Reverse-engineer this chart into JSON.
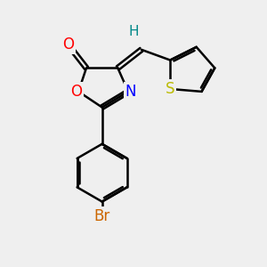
{
  "background_color": "#efefef",
  "bond_color": "#000000",
  "bond_width": 1.8,
  "atom_colors": {
    "O": "#ff0000",
    "N": "#0000ff",
    "S": "#bbbb00",
    "Br": "#cc6600",
    "H": "#008888",
    "C": "#000000"
  },
  "font_size": 10,
  "fig_size": [
    3.0,
    3.0
  ],
  "dpi": 100
}
